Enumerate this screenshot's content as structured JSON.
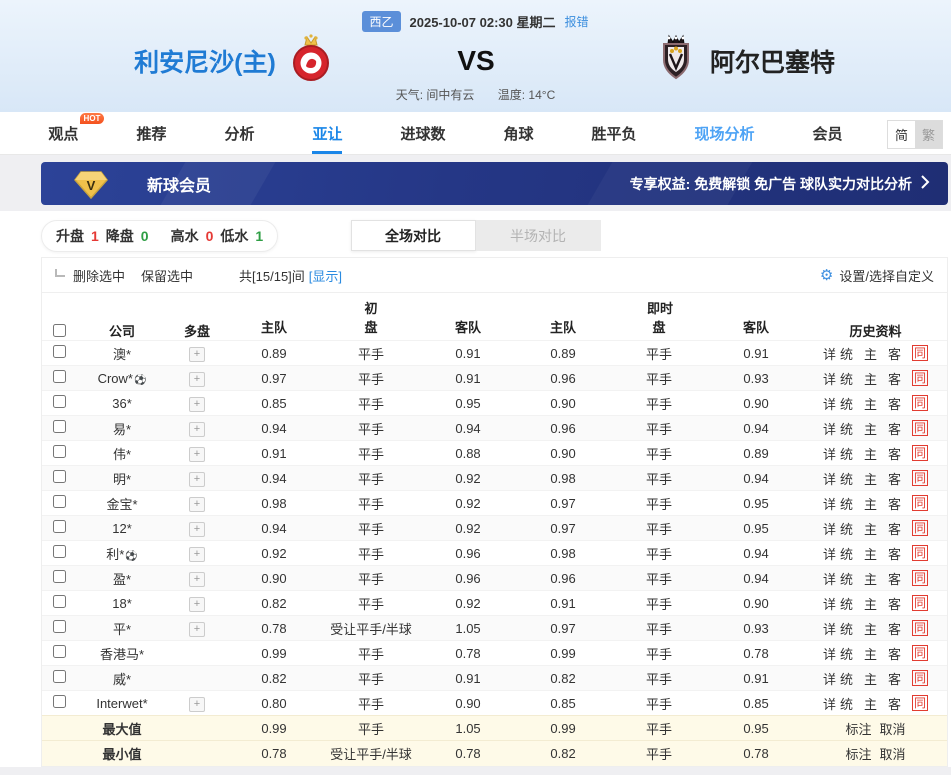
{
  "header": {
    "league_tag": "西乙",
    "datetime": "2025-10-07 02:30 星期二",
    "report_error": "报错",
    "home_team": "利安尼沙(主)",
    "vs": "VS",
    "away_team": "阿尔巴塞特",
    "weather": "天气: 间中有云",
    "temperature": "温度: 14°C"
  },
  "nav": {
    "tabs": [
      {
        "label": "观点",
        "badge": "HOT"
      },
      {
        "label": "推荐"
      },
      {
        "label": "分析"
      },
      {
        "label": "亚让",
        "active": true
      },
      {
        "label": "进球数"
      },
      {
        "label": "角球"
      },
      {
        "label": "胜平负"
      },
      {
        "label": "现场分析",
        "highlight": true
      },
      {
        "label": "会员"
      }
    ],
    "lang_simple": "简",
    "lang_traditional": "繁"
  },
  "banner": {
    "title": "新球会员",
    "benefits": "专享权益: 免费解锁 免广告 球队实力对比分析"
  },
  "stats": [
    {
      "label": "升盘",
      "value": "1",
      "color": "red"
    },
    {
      "label": "降盘",
      "value": "0",
      "color": "green"
    },
    {
      "label": "高水",
      "value": "0",
      "color": "red"
    },
    {
      "label": "低水",
      "value": "1",
      "color": "green"
    }
  ],
  "view_tabs": {
    "full": "全场对比",
    "half": "半场对比"
  },
  "controls": {
    "delete_selected": "删除选中",
    "keep_selected": "保留选中",
    "count_text": "共[15/15]间",
    "show_link": "[显示]",
    "settings": "设置/选择自定义"
  },
  "table": {
    "headers": {
      "company": "公司",
      "multi": "多盘",
      "initial": "初",
      "live": "即时",
      "home": "主队",
      "handicap": "盘",
      "away": "客队",
      "history": "历史资料"
    },
    "history_links": [
      "详",
      "统",
      "主",
      "客",
      "同"
    ],
    "rows": [
      {
        "company": "澳*",
        "ball": false,
        "multi": true,
        "init": [
          "0.89",
          "平手",
          "0.91"
        ],
        "live": [
          "0.89",
          "平手",
          "0.91"
        ]
      },
      {
        "company": "Crow*",
        "ball": true,
        "multi": true,
        "init": [
          "0.97",
          "平手",
          "0.91"
        ],
        "live": [
          "0.96",
          "平手",
          "0.93"
        ]
      },
      {
        "company": "36*",
        "ball": false,
        "multi": true,
        "init": [
          "0.85",
          "平手",
          "0.95"
        ],
        "live": [
          "0.90",
          "平手",
          "0.90"
        ]
      },
      {
        "company": "易*",
        "ball": false,
        "multi": true,
        "init": [
          "0.94",
          "平手",
          "0.94"
        ],
        "live": [
          "0.96",
          "平手",
          "0.94"
        ]
      },
      {
        "company": "伟*",
        "ball": false,
        "multi": true,
        "init": [
          "0.91",
          "平手",
          "0.88"
        ],
        "live": [
          "0.90",
          "平手",
          "0.89"
        ]
      },
      {
        "company": "明*",
        "ball": false,
        "multi": true,
        "init": [
          "0.94",
          "平手",
          "0.92"
        ],
        "live": [
          "0.98",
          "平手",
          "0.94"
        ]
      },
      {
        "company": "金宝*",
        "ball": false,
        "multi": true,
        "init": [
          "0.98",
          "平手",
          "0.92"
        ],
        "live": [
          "0.97",
          "平手",
          "0.95"
        ]
      },
      {
        "company": "12*",
        "ball": false,
        "multi": true,
        "init": [
          "0.94",
          "平手",
          "0.92"
        ],
        "live": [
          "0.97",
          "平手",
          "0.95"
        ]
      },
      {
        "company": "利*",
        "ball": true,
        "multi": true,
        "init": [
          "0.92",
          "平手",
          "0.96"
        ],
        "live": [
          "0.98",
          "平手",
          "0.94"
        ]
      },
      {
        "company": "盈*",
        "ball": false,
        "multi": true,
        "init": [
          "0.90",
          "平手",
          "0.96"
        ],
        "live": [
          "0.96",
          "平手",
          "0.94"
        ]
      },
      {
        "company": "18*",
        "ball": false,
        "multi": true,
        "init": [
          "0.82",
          "平手",
          "0.92"
        ],
        "live": [
          "0.91",
          "平手",
          "0.90"
        ]
      },
      {
        "company": "平*",
        "ball": false,
        "multi": true,
        "init": [
          "0.78",
          "受让平手/半球",
          "1.05"
        ],
        "live": [
          "0.97",
          "平手",
          "0.93"
        ]
      },
      {
        "company": "香港马*",
        "ball": false,
        "multi": false,
        "init": [
          "0.99",
          "平手",
          "0.78"
        ],
        "live": [
          "0.99",
          "平手",
          "0.78"
        ]
      },
      {
        "company": "威*",
        "ball": false,
        "multi": false,
        "init": [
          "0.82",
          "平手",
          "0.91"
        ],
        "live": [
          "0.82",
          "平手",
          "0.91"
        ]
      },
      {
        "company": "Interwet*",
        "ball": false,
        "multi": true,
        "init": [
          "0.80",
          "平手",
          "0.90"
        ],
        "live": [
          "0.85",
          "平手",
          "0.85"
        ]
      }
    ],
    "summary": [
      {
        "label": "最大值",
        "init": [
          "0.99",
          "平手",
          "1.05"
        ],
        "live": [
          "0.99",
          "平手",
          "0.95"
        ],
        "actions": [
          "标注",
          "取消"
        ]
      },
      {
        "label": "最小值",
        "init": [
          "0.78",
          "受让平手/半球",
          "0.78"
        ],
        "live": [
          "0.82",
          "平手",
          "0.78"
        ],
        "actions": [
          "标注",
          "取消"
        ]
      }
    ]
  },
  "colors": {
    "accent_blue": "#1a86e8",
    "team_blue": "#1f7bd4",
    "up_red": "#e53935",
    "down_green": "#2e9e44",
    "same_red": "#e23c31",
    "banner_navy": "#253786",
    "gold": "#f0c14b",
    "summary_bg": "#fefae8"
  }
}
